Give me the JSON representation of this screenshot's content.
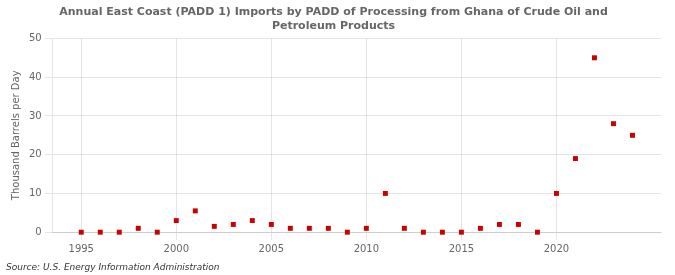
{
  "chart_data": {
    "type": "scatter",
    "title": "Annual East Coast (PADD 1) Imports by PADD of Processing from Ghana of Crude Oil and\nPetroleum Products",
    "y_label": "Thousand Barrels per Day",
    "source": "Source: U.S. Energy Information Administration",
    "x": [
      1995,
      1996,
      1997,
      1998,
      1999,
      2000,
      2001,
      2002,
      2003,
      2004,
      2005,
      2006,
      2007,
      2008,
      2009,
      2010,
      2011,
      2012,
      2013,
      2014,
      2015,
      2016,
      2017,
      2018,
      2019,
      2020,
      2021,
      2022,
      2023,
      2024
    ],
    "values": [
      0,
      0,
      0,
      1.0,
      0,
      3.0,
      5.5,
      1.5,
      2.0,
      3.0,
      2.0,
      1.0,
      1.0,
      1.0,
      0,
      1.0,
      10.0,
      1.0,
      0,
      0,
      0,
      1.0,
      2.0,
      2.0,
      0,
      10.0,
      19.0,
      45.0,
      28.0,
      25.0
    ],
    "color": "#cc0000",
    "marker": "square",
    "xlim": [
      1993.5,
      2025.5
    ],
    "xticks": [
      1995,
      2000,
      2005,
      2010,
      2015,
      2020
    ],
    "ylim": [
      0,
      50
    ],
    "yticks": [
      0,
      10,
      20,
      30,
      40,
      50
    ],
    "grid": true
  }
}
